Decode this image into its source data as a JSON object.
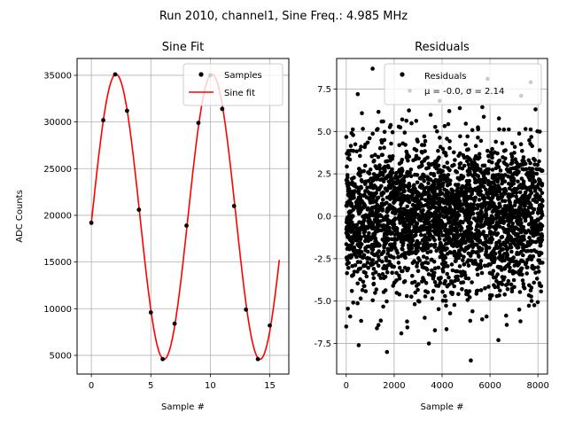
{
  "suptitle": "Run 2010, channel1, Sine Freq.: 4.985 MHz",
  "chart_data": [
    {
      "type": "line",
      "title": "Sine Fit",
      "xlabel": "Sample #",
      "ylabel": "ADC Counts",
      "xlim": [
        -1.2,
        16.6
      ],
      "ylim": [
        3000,
        36800
      ],
      "grid": true,
      "legend_position": "top-right",
      "xticks": [
        0,
        5,
        10,
        15
      ],
      "yticks": [
        5000,
        10000,
        15000,
        20000,
        25000,
        30000,
        35000
      ],
      "series": [
        {
          "name": "Samples",
          "style": "points",
          "color": "#000000",
          "x": [
            0,
            1,
            2,
            3,
            4,
            5,
            6,
            7,
            8,
            9,
            10,
            11,
            12,
            13,
            14,
            15
          ],
          "y": [
            19200,
            30200,
            35100,
            31200,
            20600,
            9600,
            4600,
            8400,
            18900,
            29900,
            35000,
            31400,
            21000,
            9900,
            4600,
            8200
          ]
        },
        {
          "name": "Sine fit",
          "style": "line",
          "color": "#ff0000",
          "model": {
            "offset": 19850,
            "amplitude": 15270,
            "period_samples": 8.07,
            "phase_rad": -0.043,
            "x_start": 0,
            "x_end": 15.8
          }
        }
      ]
    },
    {
      "type": "scatter",
      "title": "Residuals",
      "xlabel": "Sample #",
      "ylabel": "",
      "xlim": [
        -400,
        8400
      ],
      "ylim": [
        -9.3,
        9.3
      ],
      "grid": true,
      "legend_position": "top-right",
      "xticks": [
        0,
        2000,
        4000,
        6000,
        8000
      ],
      "yticks": [
        -7.5,
        -5.0,
        -2.5,
        0.0,
        2.5,
        5.0,
        7.5
      ],
      "series": [
        {
          "name": "Residuals",
          "label_line2": "μ = -0.0, σ = 2.14",
          "color": "#000000",
          "n_points": 8192,
          "mean": -0.0,
          "std": 2.14,
          "x_range": [
            0,
            8191
          ],
          "outliers": [
            {
              "x": 1100,
              "y": 8.7
            },
            {
              "x": 480,
              "y": 7.2
            },
            {
              "x": 5900,
              "y": 8.1
            },
            {
              "x": 7700,
              "y": 7.9
            },
            {
              "x": 2650,
              "y": 7.4
            },
            {
              "x": 5200,
              "y": -8.5
            },
            {
              "x": 1700,
              "y": -8.0
            },
            {
              "x": 520,
              "y": -7.6
            },
            {
              "x": 3450,
              "y": -7.5
            },
            {
              "x": 6350,
              "y": -7.3
            },
            {
              "x": 0,
              "y": -6.5
            },
            {
              "x": 1280,
              "y": -6.6
            },
            {
              "x": 7900,
              "y": 6.3
            },
            {
              "x": 4300,
              "y": 6.2
            },
            {
              "x": 2300,
              "y": -6.9
            },
            {
              "x": 6700,
              "y": -6.4
            },
            {
              "x": 3900,
              "y": 6.8
            },
            {
              "x": 7300,
              "y": 7.1
            }
          ]
        }
      ]
    }
  ]
}
